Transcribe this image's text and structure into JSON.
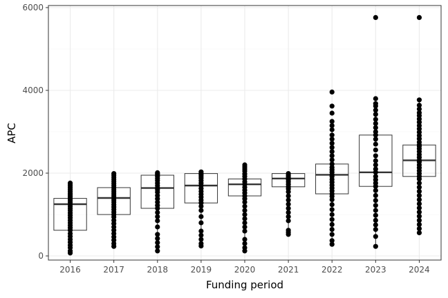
{
  "chart_data": {
    "type": "box",
    "xlabel": "Funding period",
    "ylabel": "APC",
    "categories": [
      "2016",
      "2017",
      "2018",
      "2019",
      "2020",
      "2021",
      "2022",
      "2023",
      "2024"
    ],
    "ylim": [
      -100,
      6050
    ],
    "yticks": [
      0,
      2000,
      4000,
      6000
    ],
    "grid": true,
    "legend": "none",
    "boxes": [
      {
        "category": "2016",
        "q1": 620,
        "median": 1250,
        "q3": 1390,
        "whisker_low": 70,
        "whisker_high": 1760,
        "points": [
          70,
          120,
          200,
          260,
          330,
          400,
          470,
          540,
          620,
          680,
          740,
          800,
          860,
          920,
          980,
          1040,
          1100,
          1150,
          1200,
          1250,
          1300,
          1350,
          1390,
          1430,
          1470,
          1510,
          1560,
          1610,
          1660,
          1710,
          1760
        ]
      },
      {
        "category": "2017",
        "q1": 1000,
        "median": 1400,
        "q3": 1650,
        "whisker_low": 230,
        "whisker_high": 1990,
        "points": [
          230,
          300,
          380,
          460,
          540,
          620,
          700,
          780,
          860,
          940,
          1000,
          1060,
          1120,
          1180,
          1240,
          1300,
          1350,
          1400,
          1450,
          1500,
          1550,
          1600,
          1650,
          1700,
          1750,
          1800,
          1850,
          1900,
          1950,
          1990
        ]
      },
      {
        "category": "2018",
        "q1": 1150,
        "median": 1640,
        "q3": 1950,
        "whisker_low": 120,
        "whisker_high": 2010,
        "points": [
          120,
          220,
          320,
          420,
          520,
          700,
          850,
          950,
          1050,
          1150,
          1220,
          1300,
          1380,
          1460,
          1540,
          1600,
          1640,
          1700,
          1760,
          1820,
          1870,
          1920,
          1950,
          1980,
          2010
        ]
      },
      {
        "category": "2019",
        "q1": 1280,
        "median": 1700,
        "q3": 1990,
        "whisker_low": 240,
        "whisker_high": 2030,
        "points": [
          240,
          300,
          400,
          500,
          600,
          800,
          950,
          1100,
          1200,
          1280,
          1350,
          1420,
          1490,
          1560,
          1630,
          1700,
          1760,
          1820,
          1880,
          1930,
          1970,
          1990,
          2030
        ]
      },
      {
        "category": "2020",
        "q1": 1450,
        "median": 1730,
        "q3": 1860,
        "whisker_low": 120,
        "whisker_high": 2200,
        "points": [
          120,
          200,
          300,
          400,
          600,
          700,
          800,
          900,
          1000,
          1100,
          1200,
          1300,
          1380,
          1450,
          1520,
          1590,
          1660,
          1730,
          1790,
          1860,
          1920,
          1980,
          2050,
          2100,
          2150,
          2200
        ]
      },
      {
        "category": "2021",
        "q1": 1670,
        "median": 1870,
        "q3": 1990,
        "whisker_low": 520,
        "whisker_high": 1990,
        "points": [
          520,
          570,
          620,
          850,
          950,
          1050,
          1150,
          1250,
          1350,
          1450,
          1550,
          1620,
          1670,
          1730,
          1790,
          1840,
          1870,
          1910,
          1950,
          1990
        ]
      },
      {
        "category": "2022",
        "q1": 1500,
        "median": 1960,
        "q3": 2220,
        "whisker_low": 280,
        "whisker_high": 3250,
        "points": [
          280,
          370,
          520,
          640,
          760,
          880,
          1000,
          1120,
          1240,
          1360,
          1440,
          1500,
          1570,
          1640,
          1710,
          1780,
          1850,
          1920,
          1960,
          2020,
          2080,
          2140,
          2220,
          2320,
          2420,
          2520,
          2620,
          2720,
          2820,
          2920,
          3050,
          3150,
          3250,
          3450,
          3620,
          3960
        ]
      },
      {
        "category": "2023",
        "q1": 1680,
        "median": 2020,
        "q3": 2920,
        "whisker_low": 230,
        "whisker_high": 3680,
        "points": [
          230,
          470,
          640,
          750,
          860,
          980,
          1100,
          1220,
          1340,
          1460,
          1580,
          1680,
          1760,
          1840,
          1920,
          2020,
          2100,
          2200,
          2300,
          2420,
          2560,
          2700,
          2820,
          2920,
          3000,
          3100,
          3200,
          3300,
          3420,
          3520,
          3620,
          3680,
          3800,
          5760
        ]
      },
      {
        "category": "2024",
        "q1": 1920,
        "median": 2310,
        "q3": 2680,
        "whisker_low": 560,
        "whisker_high": 3770,
        "points": [
          560,
          660,
          760,
          860,
          960,
          1060,
          1160,
          1260,
          1360,
          1460,
          1560,
          1660,
          1760,
          1860,
          1920,
          1990,
          2060,
          2130,
          2200,
          2270,
          2310,
          2380,
          2450,
          2520,
          2590,
          2650,
          2680,
          2750,
          2830,
          2910,
          2990,
          3070,
          3150,
          3230,
          3310,
          3390,
          3460,
          3550,
          3640,
          3770,
          5760
        ]
      }
    ]
  }
}
